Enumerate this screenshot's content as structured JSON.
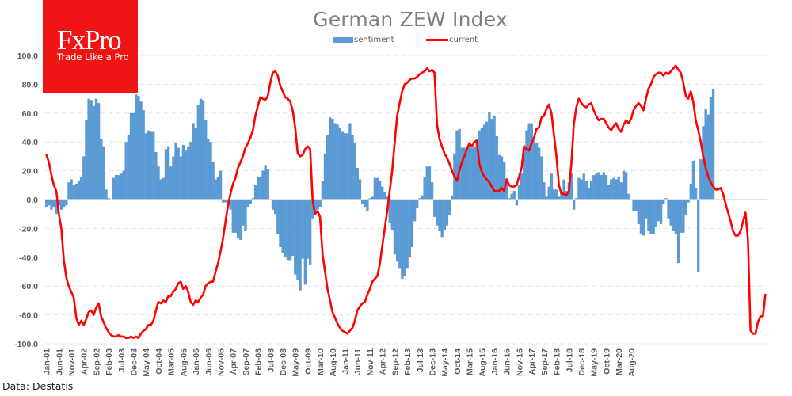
{
  "logo": {
    "brand": "FxPro",
    "tagline": "Trade Like a Pro",
    "color": "#f01414"
  },
  "source_note": "Data: Destatis",
  "chart_data": {
    "type": "bar+line",
    "title": "German ZEW Index",
    "xlabel": "",
    "ylabel": "",
    "ylim": [
      -100,
      100
    ],
    "yticks": [
      "100.0",
      "80.0",
      "60.0",
      "40.0",
      "20.0",
      "0.0",
      "-20.0",
      "-40.0",
      "-60.0",
      "-80.0",
      "-100.0"
    ],
    "ytick_values": [
      100,
      80,
      60,
      40,
      20,
      0,
      -20,
      -40,
      -60,
      -80,
      -100
    ],
    "grid": true,
    "legend_position": "top-center",
    "x_start": "Jan-01",
    "x_end": "Aug-20",
    "xtick_labels": [
      "Jan-01",
      "Jun-01",
      "Nov-01",
      "Apr-02",
      "Sep-02",
      "Feb-03",
      "Jul-03",
      "Dec-03",
      "May-04",
      "Oct-04",
      "Mar-05",
      "Aug-05",
      "Jan-06",
      "Jun-06",
      "Nov-06",
      "Apr-07",
      "Sep-07",
      "Feb-08",
      "Jul-08",
      "Dec-08",
      "May-09",
      "Oct-09",
      "Mar-10",
      "Aug-10",
      "Jan-11",
      "Jun-11",
      "Nov-11",
      "Apr-12",
      "Sep-12",
      "Feb-13",
      "Jul-13",
      "Dec-13",
      "May-14",
      "Oct-14",
      "Mar-15",
      "Aug-15",
      "Jan-16",
      "Jun-16",
      "Nov-16",
      "Apr-17",
      "Sep-17",
      "Feb-18",
      "Jul-18",
      "Dec-18",
      "May-19",
      "Oct-19",
      "Mar-20",
      "Aug-20"
    ],
    "xtick_every_months": 5,
    "series": [
      {
        "name": "sentiment",
        "type": "bar",
        "color": "#5b9bd5",
        "values": [
          -5,
          -4,
          -7,
          -5,
          -10,
          -4,
          -7,
          -5,
          -4,
          12,
          14,
          10,
          11,
          13,
          16,
          30,
          55,
          70,
          69,
          65,
          70,
          67,
          42,
          37,
          7,
          1,
          0,
          15,
          17,
          17,
          18,
          20,
          40,
          45,
          60,
          60,
          73,
          72,
          68,
          62,
          46,
          48,
          47,
          47,
          33,
          23,
          14,
          15,
          35,
          37,
          23,
          30,
          39,
          36,
          30,
          38,
          34,
          37,
          40,
          53,
          50,
          66,
          70,
          69,
          55,
          42,
          40,
          26,
          14,
          16,
          20,
          -2,
          -2,
          -2,
          -7,
          -23,
          -23,
          -27,
          -28,
          -18,
          -22,
          -5,
          -3,
          1,
          10,
          16,
          16,
          20,
          24,
          21,
          0,
          -7,
          -10,
          -24,
          -33,
          -37,
          -40,
          -42,
          -42,
          -39,
          -52,
          -56,
          -63,
          -41,
          -59,
          -41,
          -45,
          -13,
          -8,
          -7,
          -5,
          13,
          32,
          45,
          57,
          56,
          53,
          52,
          50,
          47,
          46,
          46,
          53,
          45,
          39,
          22,
          14,
          -3,
          -5,
          -8,
          1,
          2,
          15,
          15,
          13,
          9,
          5,
          2,
          -16,
          -21,
          -38,
          -43,
          -48,
          -55,
          -53,
          -48,
          -40,
          -33,
          -15,
          -6,
          1,
          3,
          16,
          23,
          23,
          12,
          -12,
          -18,
          -22,
          -26,
          -21,
          -18,
          -11,
          3,
          32,
          48,
          49,
          36,
          36,
          36,
          39,
          36,
          37,
          41,
          48,
          50,
          52,
          54,
          61,
          56,
          58,
          44,
          31,
          30,
          26,
          14,
          1,
          4,
          6,
          -4,
          10,
          18,
          35,
          48,
          53,
          53,
          41,
          39,
          36,
          30,
          12,
          2,
          9,
          18,
          7,
          7,
          2,
          5,
          14,
          6,
          12,
          18,
          -7,
          1,
          15,
          14,
          18,
          13,
          8,
          13,
          17,
          18,
          19,
          17,
          19,
          17,
          10,
          14,
          15,
          14,
          16,
          12,
          20,
          19,
          4,
          0,
          -8,
          -8,
          -17,
          -24,
          -25,
          -13,
          -22,
          -24,
          -24,
          -19,
          -15,
          -17,
          -3,
          1,
          -13,
          -18,
          -22,
          -24,
          -44,
          -23,
          -23,
          -11,
          -2,
          11,
          27,
          8,
          -50,
          28,
          51,
          63,
          59,
          71,
          77
        ]
      },
      {
        "name": "current",
        "type": "line",
        "color": "#ff0000",
        "values": [
          31,
          26,
          17,
          10,
          6,
          -10,
          -20,
          -42,
          -54,
          -60,
          -64,
          -68,
          -82,
          -87,
          -84,
          -87,
          -83,
          -78,
          -77,
          -80,
          -75,
          -72,
          -81,
          -85,
          -89,
          -92,
          -94,
          -95,
          -95,
          -94,
          -95,
          -95,
          -96,
          -96,
          -95,
          -96,
          -95,
          -96,
          -93,
          -91,
          -90,
          -87,
          -87,
          -84,
          -77,
          -71,
          -72,
          -70,
          -71,
          -67,
          -67,
          -64,
          -62,
          -58,
          -57,
          -62,
          -60,
          -64,
          -71,
          -73,
          -70,
          -71,
          -68,
          -66,
          -60,
          -58,
          -57,
          -57,
          -50,
          -44,
          -36,
          -27,
          -15,
          -4,
          4,
          11,
          15,
          22,
          26,
          30,
          36,
          39,
          43,
          48,
          58,
          65,
          71,
          70,
          69,
          72,
          81,
          88,
          89,
          86,
          79,
          75,
          71,
          70,
          68,
          62,
          50,
          32,
          30,
          31,
          35,
          37,
          35,
          0,
          -10,
          -8,
          -12,
          -38,
          -50,
          -62,
          -70,
          -78,
          -82,
          -86,
          -89,
          -91,
          -92,
          -93,
          -91,
          -89,
          -84,
          -77,
          -74,
          -72,
          -71,
          -66,
          -62,
          -57,
          -55,
          -53,
          -45,
          -32,
          -20,
          -8,
          6,
          20,
          40,
          58,
          67,
          75,
          80,
          81,
          83,
          84,
          84,
          85,
          87,
          88,
          89,
          91,
          89,
          90,
          88,
          52,
          42,
          37,
          32,
          29,
          25,
          20,
          16,
          13,
          20,
          26,
          30,
          35,
          39,
          37,
          40,
          41,
          25,
          19,
          16,
          14,
          12,
          9,
          6,
          6,
          6,
          8,
          6,
          14,
          10,
          9,
          9,
          10,
          16,
          22,
          37,
          35,
          34,
          39,
          43,
          49,
          50,
          57,
          58,
          63,
          66,
          60,
          45,
          30,
          10,
          4,
          4,
          3,
          6,
          25,
          52,
          64,
          70,
          67,
          65,
          64,
          66,
          67,
          62,
          58,
          55,
          56,
          56,
          53,
          50,
          48,
          51,
          53,
          49,
          47,
          52,
          55,
          53,
          56,
          62,
          65,
          67,
          65,
          62,
          70,
          77,
          80,
          85,
          87,
          88,
          88,
          86,
          88,
          87,
          89,
          91,
          93,
          90,
          88,
          81,
          72,
          70,
          75,
          68,
          55,
          48,
          40,
          30,
          22,
          16,
          12,
          9,
          7,
          7,
          8,
          4,
          -3,
          -9,
          -15,
          -22,
          -25,
          -25,
          -22,
          -15,
          -9,
          -28,
          -91,
          -93,
          -93,
          -85,
          -81,
          -81,
          -66
        ]
      }
    ]
  }
}
